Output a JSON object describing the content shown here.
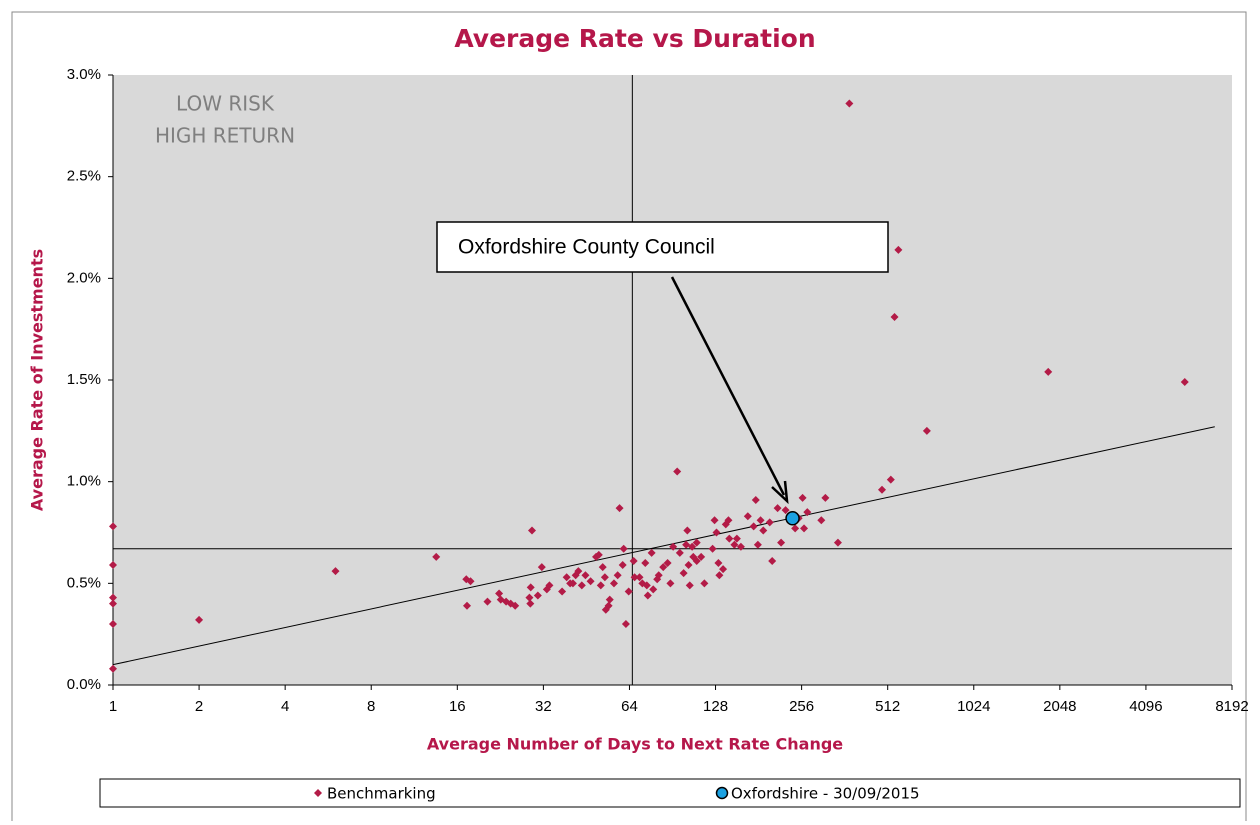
{
  "chart_data": {
    "type": "scatter",
    "title": "Average Rate vs Duration",
    "x_label": "Average Number of Days to Next Rate Change",
    "y_label": "Average Rate of Investments",
    "x_scale": "log2",
    "xlim": [
      1,
      8192
    ],
    "xticks": [
      1,
      2,
      4,
      8,
      16,
      32,
      64,
      128,
      256,
      512,
      1024,
      2048,
      4096,
      8192
    ],
    "ylim": [
      0,
      3
    ],
    "yticks": [
      {
        "value": 0,
        "label": "0.0%"
      },
      {
        "value": 0.5,
        "label": "0.5%"
      },
      {
        "value": 1,
        "label": "1.0%"
      },
      {
        "value": 1.5,
        "label": "1.5%"
      },
      {
        "value": 2,
        "label": "2.0%"
      },
      {
        "value": 2.5,
        "label": "2.5%"
      },
      {
        "value": 3,
        "label": "3.0%"
      }
    ],
    "quadrant_text": [
      "LOW RISK",
      "HIGH RETURN"
    ],
    "callout": "Oxfordshire County Council",
    "reference_lines": {
      "x": 65.5,
      "y": 0.67
    },
    "trendline": {
      "x": [
        1,
        7130
      ],
      "y": [
        0.1,
        1.27
      ]
    },
    "legend": "bottom",
    "series": [
      {
        "name": "Benchmarking",
        "color": "#b31b47",
        "marker": "diamond",
        "x": [
          1,
          1,
          1,
          1,
          1,
          1,
          2,
          6,
          13.5,
          17.2,
          17.8,
          17.3,
          20.4,
          22.4,
          22.7,
          23.7,
          24.6,
          25.5,
          29.2,
          28.6,
          28.8,
          28.9,
          30.6,
          31.6,
          32.9,
          33.6,
          37.2,
          38.6,
          39.7,
          40.6,
          41.5,
          42.4,
          43.6,
          44.9,
          46.8,
          48.9,
          50,
          50.8,
          51.6,
          52.5,
          52.9,
          54.1,
          54.6,
          56.5,
          58.2,
          59.1,
          60.6,
          61.1,
          62.2,
          63.6,
          66.2,
          66.7,
          69.4,
          71,
          72.7,
          73.6,
          74.2,
          76.5,
          77.5,
          80,
          81,
          84,
          87,
          89,
          91,
          94,
          96,
          99,
          101,
          102,
          103,
          104,
          106,
          107,
          110,
          110,
          114,
          117,
          125,
          127,
          129,
          131,
          132,
          136,
          139,
          142,
          143,
          149,
          152,
          157,
          166,
          174,
          177,
          180,
          184,
          188,
          198,
          202,
          211,
          217,
          225,
          243,
          250,
          258,
          261,
          268,
          300,
          310,
          343,
          376,
          489,
          525,
          541,
          558,
          702,
          1865,
          5600
        ],
        "values": [
          0.78,
          0.59,
          0.43,
          0.4,
          0.3,
          0.08,
          0.32,
          0.56,
          0.63,
          0.52,
          0.51,
          0.39,
          0.41,
          0.45,
          0.42,
          0.41,
          0.4,
          0.39,
          0.76,
          0.43,
          0.4,
          0.48,
          0.44,
          0.58,
          0.47,
          0.49,
          0.46,
          0.53,
          0.5,
          0.5,
          0.54,
          0.56,
          0.49,
          0.54,
          0.51,
          0.63,
          0.64,
          0.49,
          0.58,
          0.53,
          0.37,
          0.39,
          0.42,
          0.5,
          0.54,
          0.87,
          0.59,
          0.67,
          0.3,
          0.46,
          0.61,
          0.53,
          0.53,
          0.5,
          0.6,
          0.49,
          0.44,
          0.65,
          0.47,
          0.52,
          0.54,
          0.58,
          0.6,
          0.5,
          0.68,
          1.05,
          0.65,
          0.55,
          0.69,
          0.76,
          0.59,
          0.49,
          0.68,
          0.63,
          0.61,
          0.7,
          0.63,
          0.5,
          0.67,
          0.81,
          0.75,
          0.6,
          0.54,
          0.57,
          0.79,
          0.81,
          0.72,
          0.69,
          0.72,
          0.68,
          0.83,
          0.78,
          0.91,
          0.69,
          0.81,
          0.76,
          0.8,
          0.61,
          0.87,
          0.7,
          0.86,
          0.77,
          0.82,
          0.92,
          0.77,
          0.85,
          0.81,
          0.92,
          0.7,
          2.86,
          0.96,
          1.01,
          1.81,
          2.14,
          1.25,
          1.54,
          1.49
        ]
      },
      {
        "name": "Oxfordshire - 30/09/2015",
        "color": "#1ba1e2",
        "marker": "circle",
        "x": [
          238
        ],
        "values": [
          0.82
        ]
      }
    ]
  }
}
